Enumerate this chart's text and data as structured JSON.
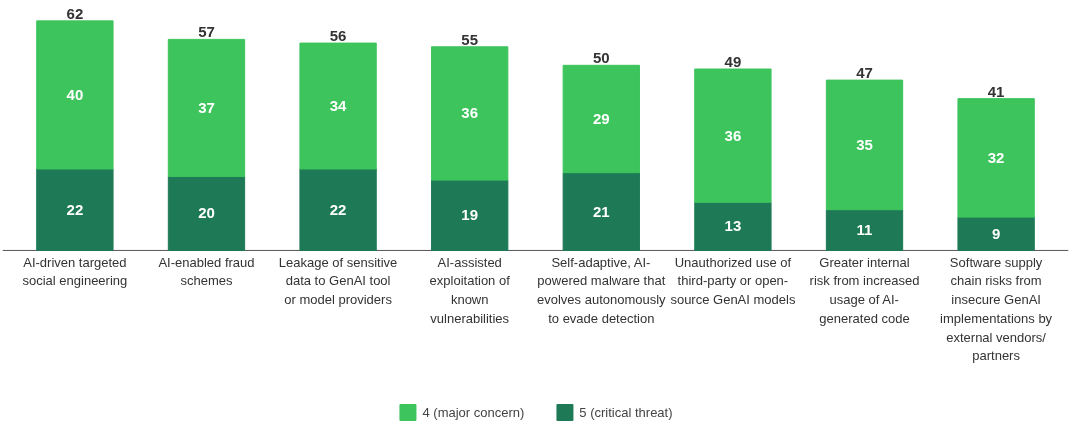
{
  "chart_data": {
    "type": "bar",
    "stacked": true,
    "data_labels": true,
    "legend": "bottom",
    "grid": false,
    "tick_labels": "x",
    "categories": [
      "AI-driven targeted social engineering",
      "AI-enabled fraud schemes",
      "Leakage of sensitive data to GenAI tool or model providers",
      "AI-assisted exploitation of known vulnerabilities",
      "Self-adaptive, AI-powered malware that evolves autonomously to evade detection",
      "Unauthorized use of third-party or open-source GenAI models",
      "Greater internal risk from increased usage of AI-generated code",
      "Software supply chain risks from insecure GenAI implementations by external vendors/ partners"
    ],
    "series": [
      {
        "name": "5 (critical threat)",
        "color": "#1e7a56",
        "values": [
          22,
          20,
          22,
          19,
          21,
          13,
          11,
          9
        ]
      },
      {
        "name": "4 (major concern)",
        "color": "#3dc45c",
        "values": [
          40,
          37,
          34,
          36,
          29,
          36,
          35,
          32
        ]
      }
    ],
    "totals": [
      "62",
      "57",
      "56",
      "55",
      "50",
      "49",
      "47",
      "41"
    ]
  }
}
